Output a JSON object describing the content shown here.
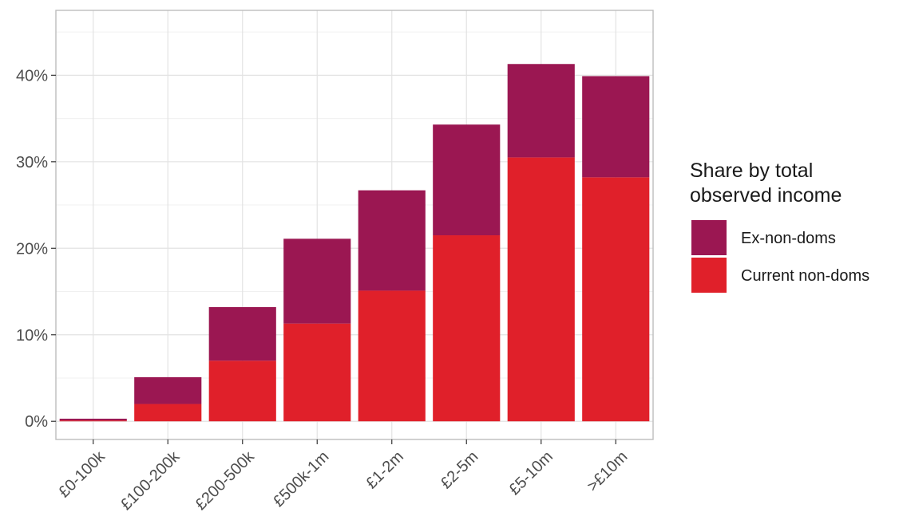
{
  "chart_data": {
    "type": "bar",
    "stacked": true,
    "categories": [
      "£0-100k",
      "£100-200k",
      "£200-500k",
      "£500k-1m",
      "£1-2m",
      "£2-5m",
      "£5-10m",
      ">£10m"
    ],
    "series": [
      {
        "name": "Current non-doms",
        "color": "#e0202a",
        "values": [
          0.1,
          2.0,
          7.0,
          11.3,
          15.1,
          21.5,
          30.5,
          28.2
        ]
      },
      {
        "name": "Ex-non-doms",
        "color": "#9b1752",
        "values": [
          0.2,
          3.1,
          6.2,
          9.8,
          11.6,
          12.8,
          10.8,
          11.7
        ]
      }
    ],
    "ylim": [
      -2.1,
      47.5
    ],
    "yticks": [
      0,
      10,
      20,
      30,
      40
    ],
    "ytick_labels": [
      "0%",
      "10%",
      "20%",
      "30%",
      "40%"
    ],
    "legend": {
      "title_lines": [
        "Share by total",
        "observed income"
      ],
      "items": [
        "Ex-non-doms",
        "Current non-doms"
      ],
      "position": "right"
    },
    "grid": true
  }
}
